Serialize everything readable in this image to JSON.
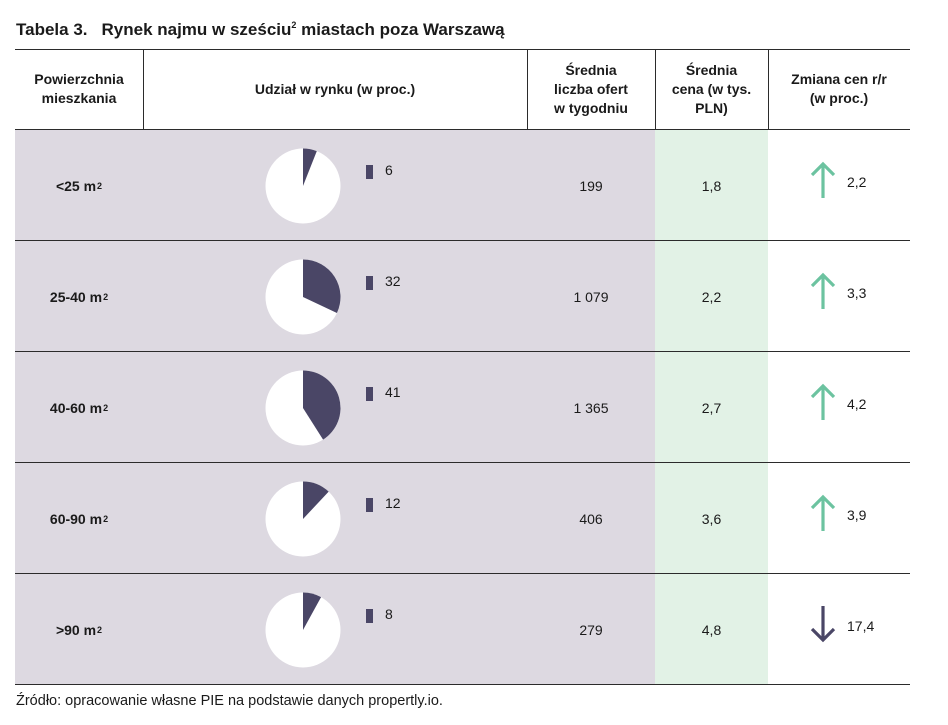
{
  "title": {
    "label": "Tabela 3.",
    "text": "Rynek najmu w sześciu",
    "sup": "2",
    "text_after": " miastach poza Warszawą"
  },
  "headers": {
    "size": "Powierzchnia mieszkania",
    "share": "Udział w rynku (w proc.)",
    "offers": "Średnia liczba ofert w tygodniu",
    "price": "Średnia cena (w tys. PLN)",
    "change": "Zmiana cen r/r (w proc.)"
  },
  "rows": [
    {
      "size": "<25 m",
      "size_sup": "2",
      "share": "6",
      "offers": "199",
      "price": "1,8",
      "change": "2,2",
      "direction": "up"
    },
    {
      "size": "25-40 m",
      "size_sup": "2",
      "share": "32",
      "offers": "1 079",
      "price": "2,2",
      "change": "3,3",
      "direction": "up"
    },
    {
      "size": "40-60 m",
      "size_sup": "2",
      "share": "41",
      "offers": "1 365",
      "price": "2,7",
      "change": "4,2",
      "direction": "up"
    },
    {
      "size": "60-90 m",
      "size_sup": "2",
      "share": "12",
      "offers": "406",
      "price": "3,6",
      "change": "3,9",
      "direction": "up"
    },
    {
      "size": ">90 m",
      "size_sup": "2",
      "share": "8",
      "offers": "279",
      "price": "4,8",
      "change": "17,4",
      "direction": "down"
    }
  ],
  "source": "Źródło: opracowanie własne PIE na podstawie danych propertly.io.",
  "colors": {
    "pie_fill": "#4a4666",
    "up_arrow": "#6cc3a0",
    "down_arrow": "#4a4666",
    "gray_bg": "#ddd9e1",
    "green_bg": "#e2f2e6"
  }
}
